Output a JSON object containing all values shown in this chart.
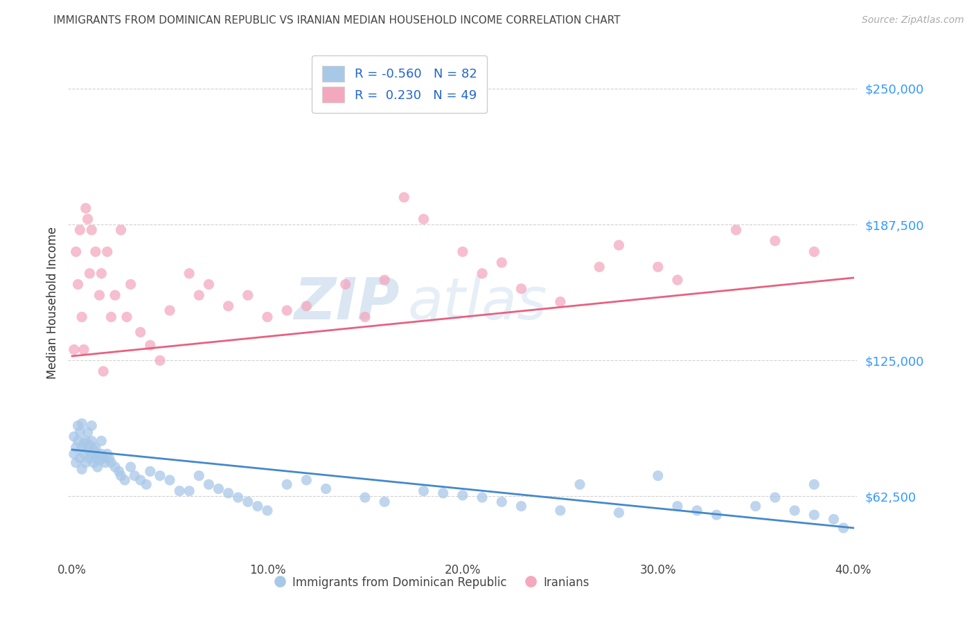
{
  "title": "IMMIGRANTS FROM DOMINICAN REPUBLIC VS IRANIAN MEDIAN HOUSEHOLD INCOME CORRELATION CHART",
  "source": "Source: ZipAtlas.com",
  "ylabel": "Median Household Income",
  "legend_label_blue": "Immigrants from Dominican Republic",
  "legend_label_pink": "Iranians",
  "r_blue": -0.56,
  "n_blue": 82,
  "r_pink": 0.23,
  "n_pink": 49,
  "blue_color": "#a8c8e8",
  "pink_color": "#f4a8be",
  "blue_line_color": "#4488cc",
  "pink_line_color": "#e86080",
  "watermark_zip": "ZIP",
  "watermark_atlas": "atlas",
  "background_color": "#ffffff",
  "grid_color": "#cccccc",
  "ytick_labels": [
    "$62,500",
    "$125,000",
    "$187,500",
    "$250,000"
  ],
  "ytick_values": [
    62500,
    125000,
    187500,
    250000
  ],
  "xtick_labels": [
    "0.0%",
    "",
    "10.0%",
    "",
    "20.0%",
    "",
    "30.0%",
    "",
    "40.0%"
  ],
  "xtick_values": [
    0.0,
    0.05,
    0.1,
    0.15,
    0.2,
    0.25,
    0.3,
    0.35,
    0.4
  ],
  "blue_scatter_x": [
    0.001,
    0.001,
    0.002,
    0.002,
    0.003,
    0.003,
    0.004,
    0.004,
    0.005,
    0.005,
    0.005,
    0.006,
    0.006,
    0.007,
    0.007,
    0.008,
    0.008,
    0.009,
    0.009,
    0.01,
    0.01,
    0.01,
    0.011,
    0.011,
    0.012,
    0.012,
    0.013,
    0.013,
    0.014,
    0.015,
    0.015,
    0.016,
    0.017,
    0.018,
    0.019,
    0.02,
    0.022,
    0.024,
    0.025,
    0.027,
    0.03,
    0.032,
    0.035,
    0.038,
    0.04,
    0.045,
    0.05,
    0.055,
    0.06,
    0.065,
    0.07,
    0.075,
    0.08,
    0.085,
    0.09,
    0.095,
    0.1,
    0.11,
    0.12,
    0.13,
    0.15,
    0.16,
    0.18,
    0.19,
    0.2,
    0.21,
    0.22,
    0.23,
    0.25,
    0.26,
    0.28,
    0.3,
    0.31,
    0.32,
    0.33,
    0.35,
    0.36,
    0.37,
    0.38,
    0.38,
    0.39,
    0.395
  ],
  "blue_scatter_y": [
    82000,
    90000,
    85000,
    78000,
    95000,
    88000,
    80000,
    92000,
    85000,
    96000,
    75000,
    87000,
    82000,
    88000,
    78000,
    84000,
    92000,
    86000,
    80000,
    88000,
    82000,
    95000,
    84000,
    78000,
    85000,
    80000,
    82000,
    76000,
    79000,
    88000,
    82000,
    80000,
    78000,
    82000,
    80000,
    78000,
    76000,
    74000,
    72000,
    70000,
    76000,
    72000,
    70000,
    68000,
    74000,
    72000,
    70000,
    65000,
    65000,
    72000,
    68000,
    66000,
    64000,
    62000,
    60000,
    58000,
    56000,
    68000,
    70000,
    66000,
    62000,
    60000,
    65000,
    64000,
    63000,
    62000,
    60000,
    58000,
    56000,
    68000,
    55000,
    72000,
    58000,
    56000,
    54000,
    58000,
    62000,
    56000,
    68000,
    54000,
    52000,
    48000
  ],
  "pink_scatter_x": [
    0.001,
    0.002,
    0.003,
    0.004,
    0.005,
    0.006,
    0.007,
    0.008,
    0.009,
    0.01,
    0.012,
    0.014,
    0.015,
    0.016,
    0.018,
    0.02,
    0.022,
    0.025,
    0.028,
    0.03,
    0.035,
    0.04,
    0.045,
    0.05,
    0.06,
    0.065,
    0.07,
    0.08,
    0.09,
    0.1,
    0.11,
    0.12,
    0.14,
    0.15,
    0.16,
    0.17,
    0.18,
    0.2,
    0.21,
    0.22,
    0.23,
    0.25,
    0.27,
    0.28,
    0.3,
    0.31,
    0.34,
    0.36,
    0.38
  ],
  "pink_scatter_y": [
    130000,
    175000,
    160000,
    185000,
    145000,
    130000,
    195000,
    190000,
    165000,
    185000,
    175000,
    155000,
    165000,
    120000,
    175000,
    145000,
    155000,
    185000,
    145000,
    160000,
    138000,
    132000,
    125000,
    148000,
    165000,
    155000,
    160000,
    150000,
    155000,
    145000,
    148000,
    150000,
    160000,
    145000,
    162000,
    200000,
    190000,
    175000,
    165000,
    170000,
    158000,
    152000,
    168000,
    178000,
    168000,
    162000,
    185000,
    180000,
    175000
  ],
  "blue_trend_x": [
    0.0,
    0.4
  ],
  "blue_trend_y": [
    84000,
    48000
  ],
  "pink_trend_x": [
    0.0,
    0.4
  ],
  "pink_trend_y": [
    127000,
    163000
  ],
  "xlim": [
    -0.002,
    0.402
  ],
  "ylim": [
    35000,
    268000
  ]
}
